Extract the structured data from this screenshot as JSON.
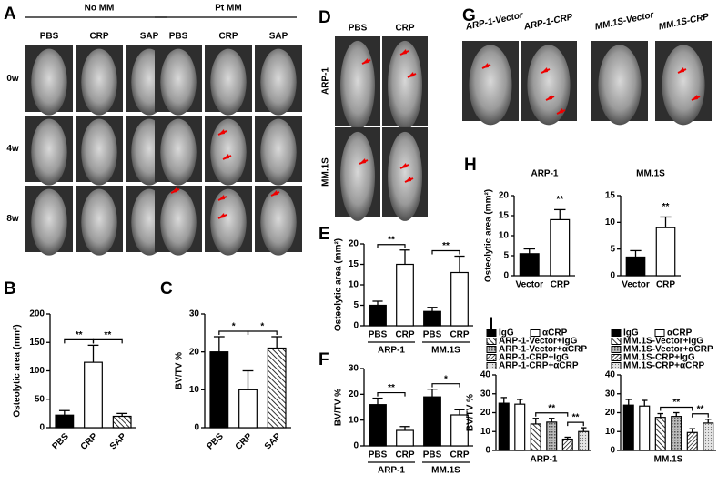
{
  "panel_letters": [
    "A",
    "B",
    "C",
    "D",
    "E",
    "F",
    "G",
    "H",
    "I"
  ],
  "panel_A": {
    "groups": [
      "No MM",
      "Pt MM"
    ],
    "columns": [
      "PBS",
      "CRP",
      "SAP",
      "PBS",
      "CRP",
      "SAP"
    ],
    "rows": [
      "0w",
      "4w",
      "8w"
    ]
  },
  "panel_D": {
    "columns": [
      "PBS",
      "CRP"
    ],
    "rows": [
      "ARP-1",
      "MM.1S"
    ]
  },
  "panel_G": {
    "columns": [
      "ARP-1-Vector",
      "ARP-1-CRP",
      "MM.1S-Vector",
      "MM.1S-CRP"
    ]
  },
  "chart_data": [
    {
      "type": "bar",
      "ylabel": "Osteolytic area (mm²)",
      "categories": [
        "PBS",
        "CRP",
        "SAP"
      ],
      "values": [
        22,
        115,
        20
      ],
      "errors": [
        8,
        30,
        5
      ],
      "fills": [
        "black",
        "white",
        "hatch"
      ],
      "ylim": [
        0,
        200
      ],
      "yticks": [
        0,
        50,
        100,
        150,
        200
      ],
      "annotations": [
        "**",
        "**"
      ]
    },
    {
      "type": "bar",
      "ylabel": "BV/TV %",
      "categories": [
        "PBS",
        "CRP",
        "SAP"
      ],
      "values": [
        20,
        10,
        21
      ],
      "errors": [
        4,
        5,
        3
      ],
      "fills": [
        "black",
        "white",
        "hatch"
      ],
      "ylim": [
        0,
        30
      ],
      "yticks": [
        0,
        10,
        20,
        30
      ],
      "annotations": [
        "*",
        "*"
      ]
    },
    {
      "type": "bar",
      "ylabel": "Osteolytic area (mm²)",
      "categories": [
        "PBS",
        "CRP",
        "PBS",
        "CRP"
      ],
      "groups": [
        "ARP-1",
        "MM.1S"
      ],
      "values": [
        5,
        15,
        3.5,
        13
      ],
      "errors": [
        1,
        3.5,
        1,
        4
      ],
      "fills": [
        "black",
        "white",
        "black",
        "white"
      ],
      "ylim": [
        0,
        20
      ],
      "yticks": [
        0,
        5,
        10,
        15,
        20
      ],
      "annotations": [
        "**",
        "**"
      ]
    },
    {
      "type": "bar",
      "ylabel": "BV/TV %",
      "categories": [
        "PBS",
        "CRP",
        "PBS",
        "CRP"
      ],
      "groups": [
        "ARP-1",
        "MM.1S"
      ],
      "values": [
        16,
        6,
        19,
        12
      ],
      "errors": [
        2.5,
        1.5,
        3,
        2
      ],
      "fills": [
        "black",
        "white",
        "black",
        "white"
      ],
      "ylim": [
        0,
        30
      ],
      "yticks": [
        0,
        10,
        20,
        30
      ],
      "annotations": [
        "**",
        "*"
      ]
    },
    {
      "type": "bar",
      "title": "ARP-1",
      "ylabel": "Osteolytic area (mm²)",
      "categories": [
        "Vector",
        "CRP"
      ],
      "values": [
        5.5,
        14
      ],
      "errors": [
        1.2,
        2.5
      ],
      "fills": [
        "black",
        "white"
      ],
      "ylim": [
        0,
        20
      ],
      "yticks": [
        0,
        5,
        10,
        15,
        20
      ],
      "annotations": [
        "**"
      ]
    },
    {
      "type": "bar",
      "title": "MM.1S",
      "categories": [
        "Vector",
        "CRP"
      ],
      "values": [
        3.5,
        9
      ],
      "errors": [
        1.2,
        2
      ],
      "fills": [
        "black",
        "white"
      ],
      "ylim": [
        0,
        15
      ],
      "yticks": [
        0,
        5,
        10,
        15
      ],
      "annotations": [
        "**"
      ]
    },
    {
      "type": "bar",
      "ylabel": "BV/TV %",
      "xlabel": "ARP-1",
      "ylim": [
        0,
        40
      ],
      "yticks": [
        0,
        10,
        20,
        30,
        40
      ],
      "annotations": [
        "**",
        "**"
      ],
      "series": [
        {
          "name": "IgG",
          "fill": "black",
          "values": [
            25
          ],
          "errors": [
            3
          ]
        },
        {
          "name": "αCRP",
          "fill": "white",
          "values": [
            24.5
          ],
          "errors": [
            2.5
          ]
        },
        {
          "name": "ARP-1-Vector+IgG",
          "fill": "hatch",
          "values": [
            14
          ],
          "errors": [
            3
          ]
        },
        {
          "name": "ARP-1-Vector+αCRP",
          "fill": "grid",
          "values": [
            15
          ],
          "errors": [
            2
          ]
        },
        {
          "name": "ARP-1-CRP+IgG",
          "fill": "hatch2",
          "values": [
            6
          ],
          "errors": [
            1
          ]
        },
        {
          "name": "ARP-1-CRP+αCRP",
          "fill": "dots",
          "values": [
            10
          ],
          "errors": [
            2
          ]
        }
      ]
    },
    {
      "type": "bar",
      "xlabel": "MM.1S",
      "ylim": [
        0,
        40
      ],
      "yticks": [
        0,
        10,
        20,
        30,
        40
      ],
      "annotations": [
        "**",
        "**"
      ],
      "series": [
        {
          "name": "IgG",
          "fill": "black",
          "values": [
            24
          ],
          "errors": [
            3
          ]
        },
        {
          "name": "αCRP",
          "fill": "white",
          "values": [
            23.5
          ],
          "errors": [
            3
          ]
        },
        {
          "name": "MM.1S-Vector+IgG",
          "fill": "hatch",
          "values": [
            17.5
          ],
          "errors": [
            2
          ]
        },
        {
          "name": "MM.1S-Vector+αCRP",
          "fill": "grid",
          "values": [
            18
          ],
          "errors": [
            2
          ]
        },
        {
          "name": "MM.1S-CRP+IgG",
          "fill": "hatch2",
          "values": [
            9.5
          ],
          "errors": [
            2
          ]
        },
        {
          "name": "MM.1S-CRP+αCRP",
          "fill": "dots",
          "values": [
            14.5
          ],
          "errors": [
            2
          ]
        }
      ]
    }
  ]
}
